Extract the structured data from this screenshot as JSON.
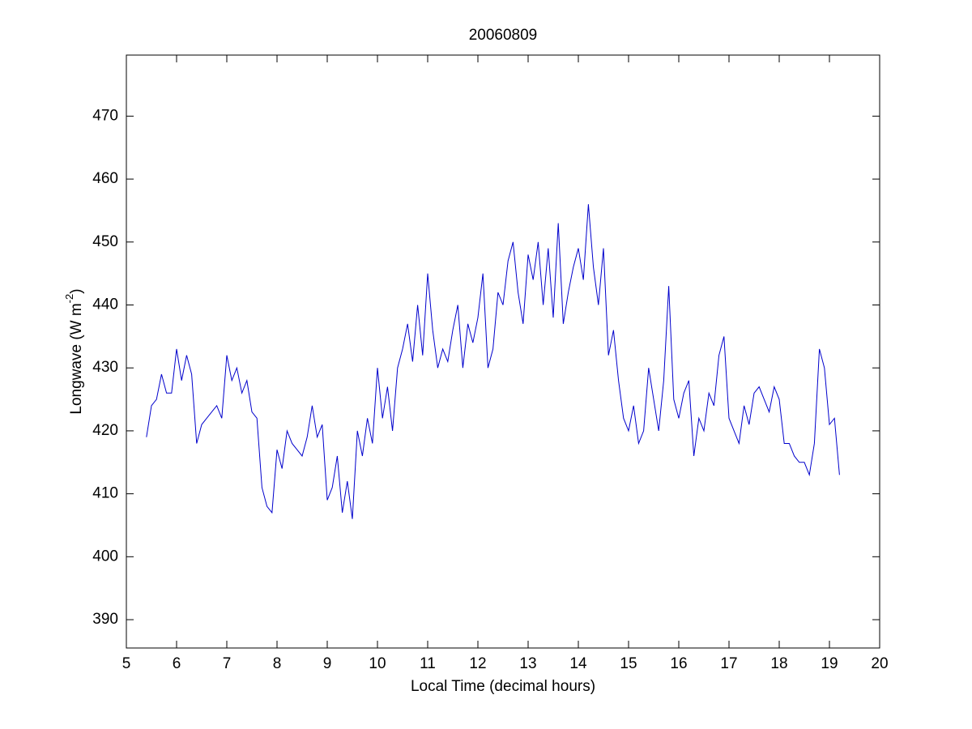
{
  "chart_data": {
    "type": "line",
    "title": "20060809",
    "xlabel": "Local Time (decimal hours)",
    "ylabel": {
      "text": "Longwave (W m",
      "superscript": "-2",
      "suffix": ")"
    },
    "color": "#0000cc",
    "xlim": [
      5,
      20
    ],
    "xticks": [
      5,
      6,
      7,
      8,
      9,
      10,
      11,
      12,
      13,
      14,
      15,
      16,
      17,
      18,
      19,
      20
    ],
    "ylim": [
      385.5,
      479.7
    ],
    "yticks": [
      390,
      400,
      410,
      420,
      430,
      440,
      450,
      460,
      470
    ],
    "x": [
      5.4,
      5.5,
      5.6,
      5.7,
      5.8,
      5.9,
      6.0,
      6.1,
      6.2,
      6.3,
      6.4,
      6.5,
      6.6,
      6.7,
      6.8,
      6.9,
      7.0,
      7.1,
      7.2,
      7.3,
      7.4,
      7.5,
      7.6,
      7.7,
      7.8,
      7.9,
      8.0,
      8.1,
      8.2,
      8.3,
      8.4,
      8.5,
      8.6,
      8.7,
      8.8,
      8.9,
      9.0,
      9.1,
      9.2,
      9.3,
      9.4,
      9.5,
      9.6,
      9.7,
      9.8,
      9.9,
      10.0,
      10.1,
      10.2,
      10.3,
      10.4,
      10.5,
      10.6,
      10.7,
      10.8,
      10.9,
      11.0,
      11.1,
      11.2,
      11.3,
      11.4,
      11.5,
      11.6,
      11.7,
      11.8,
      11.9,
      12.0,
      12.1,
      12.2,
      12.3,
      12.4,
      12.5,
      12.6,
      12.7,
      12.8,
      12.9,
      13.0,
      13.1,
      13.2,
      13.3,
      13.4,
      13.5,
      13.6,
      13.7,
      13.8,
      13.9,
      14.0,
      14.1,
      14.2,
      14.3,
      14.4,
      14.5,
      14.6,
      14.7,
      14.8,
      14.9,
      15.0,
      15.1,
      15.2,
      15.3,
      15.4,
      15.5,
      15.6,
      15.7,
      15.8,
      15.9,
      16.0,
      16.1,
      16.2,
      16.3,
      16.4,
      16.5,
      16.6,
      16.7,
      16.8,
      16.9,
      17.0,
      17.1,
      17.2,
      17.3,
      17.4,
      17.5,
      17.6,
      17.7,
      17.8,
      17.9,
      18.0,
      18.1,
      18.2,
      18.3,
      18.4,
      18.5,
      18.6,
      18.7,
      18.8,
      18.9,
      19.0,
      19.1,
      19.2
    ],
    "values": [
      419,
      424,
      425,
      429,
      426,
      426,
      433,
      428,
      432,
      429,
      418,
      421,
      422,
      423,
      424,
      422,
      432,
      428,
      430,
      426,
      428,
      423,
      422,
      411,
      408,
      407,
      417,
      414,
      420,
      418,
      417,
      416,
      419,
      424,
      419,
      421,
      409,
      411,
      416,
      407,
      412,
      406,
      420,
      416,
      422,
      418,
      430,
      422,
      427,
      420,
      430,
      433,
      437,
      431,
      440,
      432,
      445,
      436,
      430,
      433,
      431,
      436,
      440,
      430,
      437,
      434,
      438,
      445,
      430,
      433,
      442,
      440,
      447,
      450,
      442,
      437,
      448,
      444,
      450,
      440,
      449,
      438,
      453,
      437,
      442,
      446,
      449,
      444,
      456,
      446,
      440,
      449,
      432,
      436,
      428,
      422,
      420,
      424,
      418,
      420,
      430,
      425,
      420,
      428,
      443,
      425,
      422,
      426,
      428,
      416,
      422,
      420,
      426,
      424,
      432,
      435,
      422,
      420,
      418,
      424,
      421,
      426,
      427,
      425,
      423,
      427,
      425,
      418,
      418,
      416,
      415,
      415,
      413,
      418,
      433,
      430,
      421,
      422,
      413
    ]
  }
}
